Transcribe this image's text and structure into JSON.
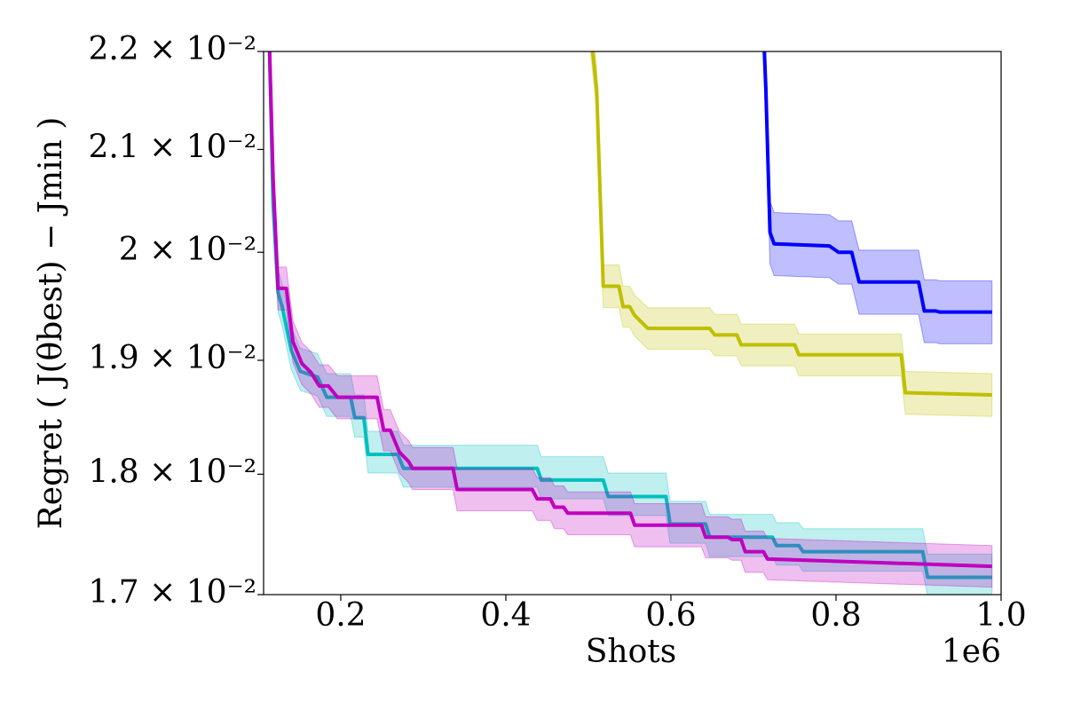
{
  "chart_data": {
    "type": "line",
    "xlabel": "Shots",
    "x_offset_label": "1e6",
    "ylabel": "Regret ( J(θbest) − Jmin )",
    "ylog": true,
    "xlim": [
      0.1065,
      1.0
    ],
    "xticks": [
      0.2,
      0.4,
      0.6,
      0.8,
      {
        "value": 1.0,
        "label": "1.0"
      }
    ],
    "ylim": [
      0.017,
      0.022
    ],
    "yticks": [
      {
        "value": 0.017,
        "label": "1.7 × 10⁻²"
      },
      {
        "value": 0.018,
        "label": "1.8 × 10⁻²"
      },
      {
        "value": 0.019,
        "label": "1.9 × 10⁻²"
      },
      {
        "value": 0.02,
        "label": "2 × 10⁻²"
      },
      {
        "value": 0.021,
        "label": "2.1 × 10⁻²"
      },
      {
        "value": 0.022,
        "label": "2.2 × 10⁻²"
      }
    ],
    "series": [
      {
        "color": "#0000ff",
        "x": [
          0.712,
          0.715,
          0.72,
          0.725,
          0.792,
          0.803,
          0.819,
          0.828,
          0.9,
          0.907,
          0.921,
          0.926,
          0.989
        ],
        "values": [
          0.02226,
          0.02161,
          0.02019,
          0.02008,
          0.02006,
          0.02,
          0.02,
          0.01972,
          0.01972,
          0.01945,
          0.01945,
          0.01944,
          0.01944
        ],
        "upper": [
          0.02259,
          0.02193,
          0.02049,
          0.02038,
          0.02036,
          0.0203,
          0.0203,
          0.02002,
          0.02002,
          0.01974,
          0.01974,
          0.01973,
          0.01973
        ],
        "lower": [
          0.02193,
          0.02129,
          0.01989,
          0.01978,
          0.01976,
          0.0197,
          0.0197,
          0.01942,
          0.01942,
          0.01916,
          0.01916,
          0.01915,
          0.01915
        ]
      },
      {
        "color": "#bfbf00",
        "x": [
          0.502,
          0.51,
          0.518,
          0.537,
          0.542,
          0.55,
          0.556,
          0.572,
          0.647,
          0.653,
          0.68,
          0.685,
          0.75,
          0.755,
          0.879,
          0.884,
          0.989
        ],
        "values": [
          0.02226,
          0.02161,
          0.01968,
          0.01968,
          0.01949,
          0.01949,
          0.01941,
          0.01929,
          0.01929,
          0.01923,
          0.01923,
          0.01914,
          0.01914,
          0.01905,
          0.01905,
          0.01871,
          0.01869
        ],
        "upper": [
          0.02248,
          0.02183,
          0.01988,
          0.01988,
          0.01968,
          0.01968,
          0.0196,
          0.01948,
          0.01948,
          0.01942,
          0.01942,
          0.01933,
          0.01933,
          0.01924,
          0.01924,
          0.0189,
          0.01888
        ],
        "lower": [
          0.02204,
          0.02139,
          0.01948,
          0.01948,
          0.0193,
          0.0193,
          0.01922,
          0.0191,
          0.0191,
          0.01904,
          0.01904,
          0.01895,
          0.01895,
          0.01886,
          0.01886,
          0.01852,
          0.0185
        ]
      },
      {
        "color": "#00bfbf",
        "x": [
          0.113,
          0.118,
          0.124,
          0.129,
          0.14,
          0.151,
          0.172,
          0.183,
          0.212,
          0.217,
          0.228,
          0.233,
          0.269,
          0.276,
          0.438,
          0.443,
          0.518,
          0.524,
          0.594,
          0.599,
          0.642,
          0.647,
          0.723,
          0.728,
          0.755,
          0.76,
          0.905,
          0.911,
          0.989
        ],
        "values": [
          0.02226,
          0.02046,
          0.01962,
          0.01949,
          0.01909,
          0.0189,
          0.01885,
          0.01867,
          0.01867,
          0.01849,
          0.01849,
          0.01817,
          0.01817,
          0.01805,
          0.01805,
          0.01795,
          0.01795,
          0.01781,
          0.01781,
          0.01758,
          0.01758,
          0.01747,
          0.01747,
          0.0174,
          0.0174,
          0.01735,
          0.01735,
          0.01714,
          0.01714
        ],
        "upper": [
          0.0225,
          0.02069,
          0.01984,
          0.0197,
          0.0193,
          0.01911,
          0.01906,
          0.01888,
          0.01888,
          0.01869,
          0.01869,
          0.01837,
          0.01837,
          0.01825,
          0.01825,
          0.01815,
          0.01815,
          0.01801,
          0.01801,
          0.01777,
          0.01777,
          0.01766,
          0.01766,
          0.01759,
          0.01759,
          0.01754,
          0.01754,
          0.01733,
          0.01733
        ],
        "lower": [
          0.02206,
          0.02028,
          0.01944,
          0.01931,
          0.01892,
          0.01873,
          0.01868,
          0.0185,
          0.0185,
          0.01832,
          0.01832,
          0.01801,
          0.01801,
          0.01789,
          0.01789,
          0.01779,
          0.01779,
          0.01765,
          0.01765,
          0.01742,
          0.01742,
          0.01731,
          0.01731,
          0.01724,
          0.01724,
          0.01719,
          0.01719,
          0.01699,
          0.01699
        ]
      },
      {
        "color": "#bf00bf",
        "x": [
          0.113,
          0.118,
          0.124,
          0.134,
          0.142,
          0.153,
          0.164,
          0.174,
          0.185,
          0.196,
          0.244,
          0.252,
          0.26,
          0.271,
          0.282,
          0.287,
          0.336,
          0.341,
          0.432,
          0.438,
          0.454,
          0.459,
          0.47,
          0.475,
          0.551,
          0.556,
          0.637,
          0.642,
          0.669,
          0.674,
          0.685,
          0.69,
          0.712,
          0.717,
          0.989
        ],
        "values": [
          0.02226,
          0.02072,
          0.01966,
          0.01966,
          0.01917,
          0.01897,
          0.01889,
          0.01877,
          0.01877,
          0.01867,
          0.01867,
          0.01838,
          0.01838,
          0.01819,
          0.01811,
          0.01805,
          0.01805,
          0.01787,
          0.01787,
          0.01779,
          0.01779,
          0.01772,
          0.01772,
          0.01767,
          0.01767,
          0.01757,
          0.01757,
          0.01747,
          0.01747,
          0.01745,
          0.01745,
          0.01735,
          0.01735,
          0.01729,
          0.01723
        ],
        "upper": [
          0.02248,
          0.02093,
          0.01986,
          0.01986,
          0.01936,
          0.01916,
          0.01908,
          0.01896,
          0.01896,
          0.01886,
          0.01886,
          0.01856,
          0.01856,
          0.01837,
          0.01829,
          0.01823,
          0.01823,
          0.01805,
          0.01805,
          0.01797,
          0.01797,
          0.0179,
          0.0179,
          0.01785,
          0.01785,
          0.01775,
          0.01775,
          0.01764,
          0.01764,
          0.01762,
          0.01762,
          0.01752,
          0.01752,
          0.01746,
          0.0174
        ],
        "lower": [
          0.02204,
          0.02051,
          0.01946,
          0.01946,
          0.01898,
          0.01878,
          0.0187,
          0.01858,
          0.01858,
          0.01848,
          0.01848,
          0.0182,
          0.0182,
          0.01801,
          0.01793,
          0.01787,
          0.01787,
          0.01769,
          0.01769,
          0.01761,
          0.01761,
          0.01754,
          0.01754,
          0.01749,
          0.01749,
          0.01739,
          0.01739,
          0.0173,
          0.0173,
          0.01728,
          0.01728,
          0.01718,
          0.01718,
          0.01712,
          0.01706
        ]
      }
    ]
  }
}
